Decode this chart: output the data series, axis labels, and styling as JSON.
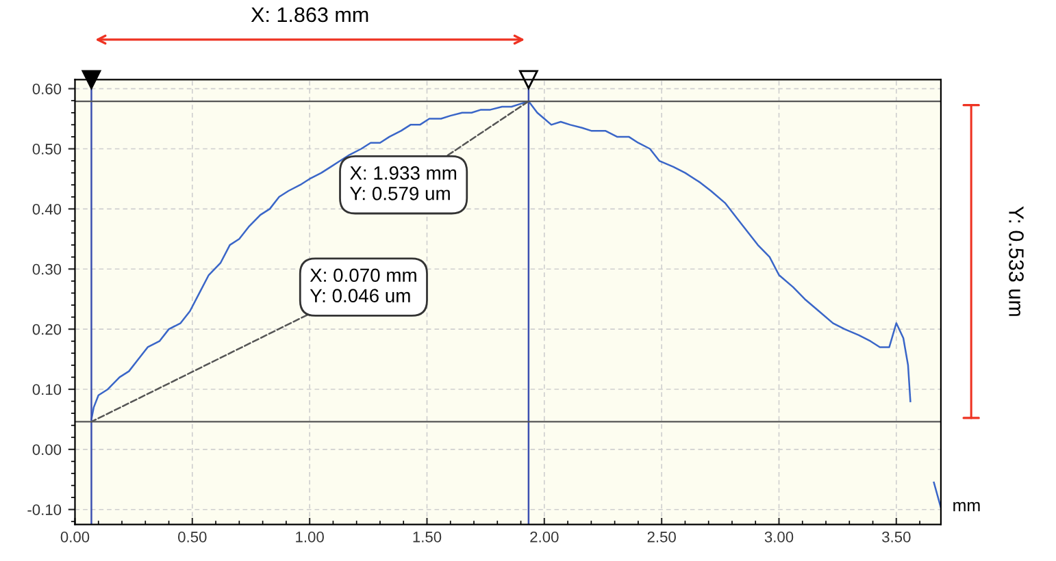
{
  "chart_data": {
    "type": "line",
    "xlabel": "mm",
    "x": [
      0.07,
      0.08,
      0.1,
      0.14,
      0.19,
      0.23,
      0.27,
      0.31,
      0.36,
      0.4,
      0.45,
      0.49,
      0.53,
      0.57,
      0.62,
      0.66,
      0.7,
      0.74,
      0.79,
      0.83,
      0.87,
      0.91,
      0.96,
      1.0,
      1.05,
      1.09,
      1.13,
      1.17,
      1.22,
      1.26,
      1.3,
      1.34,
      1.39,
      1.43,
      1.47,
      1.51,
      1.56,
      1.6,
      1.65,
      1.69,
      1.73,
      1.77,
      1.82,
      1.86,
      1.9,
      1.933,
      1.97,
      2.0,
      2.03,
      2.07,
      2.11,
      2.16,
      2.2,
      2.26,
      2.31,
      2.36,
      2.4,
      2.45,
      2.49,
      2.55,
      2.6,
      2.66,
      2.71,
      2.77,
      2.83,
      2.87,
      2.91,
      2.96,
      3.0,
      3.06,
      3.11,
      3.17,
      3.23,
      3.28,
      3.34,
      3.39,
      3.43,
      3.47,
      3.5,
      3.53,
      3.55,
      3.56,
      3.6,
      3.66,
      3.69
    ],
    "series": [
      {
        "color": "#3a66c8",
        "values": [
          0.05,
          0.07,
          0.09,
          0.1,
          0.12,
          0.13,
          0.15,
          0.17,
          0.18,
          0.2,
          0.21,
          0.23,
          0.26,
          0.29,
          0.31,
          0.34,
          0.35,
          0.37,
          0.39,
          0.4,
          0.42,
          0.43,
          0.44,
          0.45,
          0.46,
          0.47,
          0.48,
          0.49,
          0.5,
          0.51,
          0.51,
          0.52,
          0.53,
          0.54,
          0.54,
          0.55,
          0.55,
          0.555,
          0.56,
          0.56,
          0.565,
          0.565,
          0.57,
          0.57,
          0.575,
          0.579,
          0.56,
          0.55,
          0.54,
          0.545,
          0.54,
          0.535,
          0.53,
          0.53,
          0.52,
          0.52,
          0.51,
          0.5,
          0.48,
          0.47,
          0.46,
          0.445,
          0.43,
          0.41,
          0.38,
          0.36,
          0.34,
          0.32,
          0.29,
          0.27,
          0.25,
          0.23,
          0.21,
          0.2,
          0.19,
          0.18,
          0.17,
          0.17,
          0.21,
          0.185,
          0.14,
          0.08,
          null,
          -0.055,
          -0.097
        ]
      }
    ],
    "xlim": [
      0,
      3.69
    ],
    "ylim": [
      -0.125,
      0.615
    ],
    "xticks": [
      {
        "value": 0,
        "label": "0.00"
      },
      {
        "value": 0.5,
        "label": "0.50"
      },
      {
        "value": 1,
        "label": "1.00"
      },
      {
        "value": 1.5,
        "label": "1.50"
      },
      {
        "value": 2,
        "label": "2.00"
      },
      {
        "value": 2.5,
        "label": "2.50"
      },
      {
        "value": 3,
        "label": "3.00"
      },
      {
        "value": 3.5,
        "label": "3.50"
      }
    ],
    "yticks": [
      {
        "value": -0.1,
        "label": "-0.10"
      },
      {
        "value": 0,
        "label": "0.00"
      },
      {
        "value": 0.1,
        "label": "0.10"
      },
      {
        "value": 0.2,
        "label": "0.20"
      },
      {
        "value": 0.3,
        "label": "0.30"
      },
      {
        "value": 0.4,
        "label": "0.40"
      },
      {
        "value": 0.5,
        "label": "0.50"
      },
      {
        "value": 0.6,
        "label": "0.60"
      }
    ],
    "grid": true,
    "marker": "none",
    "line_style": "solid",
    "ref_lines": [
      {
        "axis": "x",
        "value": 0.07,
        "color": "#3b4fb0"
      },
      {
        "axis": "x",
        "value": 1.933,
        "color": "#3b4fb0"
      },
      {
        "axis": "y",
        "value": 0.046,
        "color": "#555555"
      },
      {
        "axis": "y",
        "value": 0.579,
        "color": "#555555"
      }
    ],
    "annotations": [
      "X: 1.863 mm",
      "Y: 0.533 um",
      {
        "text": "X: 0.070 mm\nY: 0.046 um",
        "x": 0.07,
        "y": 0.046
      },
      {
        "text": "X: 1.933 mm\nY: 0.579 um",
        "x": 1.933,
        "y": 0.579
      }
    ]
  }
}
